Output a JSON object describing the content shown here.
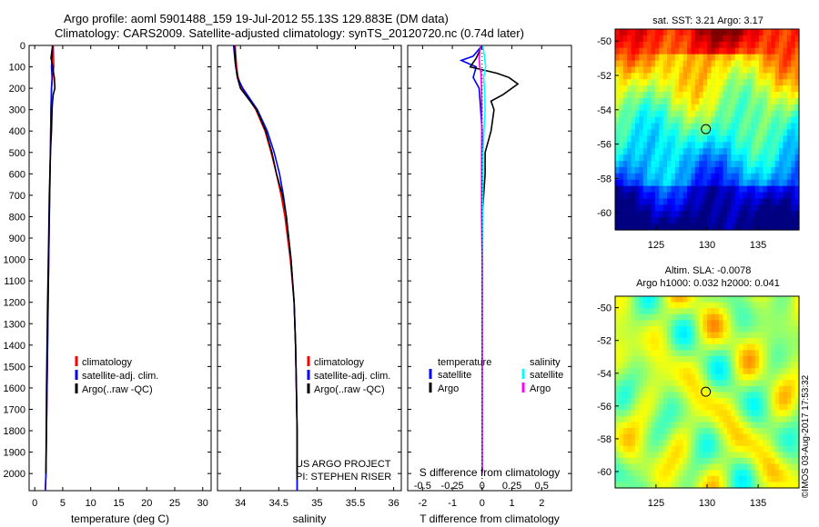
{
  "header": {
    "line1": "Argo profile: aoml 5901488_159 19-Jul-2012 55.13S 129.883E (DM data)",
    "line2": "Climatology: CARS2009. Satellite-adjusted climatology: synTS_20120720.nc (0.74d later)"
  },
  "colors": {
    "climatology": "#ff0000",
    "satellite": "#0000ff",
    "argo": "#000000",
    "sat_salinity": "#00ffff",
    "argo_salinity": "#ff00ff"
  },
  "credit": "©IMOS 03-Aug-2017 17:53:32",
  "chart_data": [
    {
      "type": "line",
      "name": "temperature-profile",
      "xlabel": "temperature (deg C)",
      "ylabel": "",
      "xlim": [
        -1,
        31.5
      ],
      "ylim": [
        2080,
        0
      ],
      "xticks": [
        0,
        5,
        10,
        15,
        20,
        25,
        30
      ],
      "yticks": [
        0,
        100,
        200,
        300,
        400,
        500,
        600,
        700,
        800,
        900,
        1000,
        1100,
        1200,
        1300,
        1400,
        1500,
        1600,
        1700,
        1800,
        1900,
        2000
      ],
      "legend": [
        "climatology",
        "satellite-adj. clim.",
        "Argo(..raw -QC)"
      ],
      "series": [
        {
          "name": "climatology",
          "color": "#ff0000",
          "depth": [
            0,
            100,
            150,
            200,
            300,
            500,
            800,
            1200,
            1600,
            2000,
            2080
          ],
          "values": [
            3.3,
            3.4,
            3.2,
            3.0,
            2.9,
            2.8,
            2.6,
            2.4,
            2.2,
            2.0,
            1.9
          ]
        },
        {
          "name": "satellite",
          "color": "#0000ff",
          "depth": [
            0,
            60,
            100,
            150,
            200,
            300,
            500,
            800,
            1200,
            1600,
            2000,
            2080
          ],
          "values": [
            3.2,
            3.1,
            3.0,
            3.1,
            3.0,
            2.9,
            2.8,
            2.6,
            2.4,
            2.2,
            2.0,
            1.9
          ]
        },
        {
          "name": "argo",
          "color": "#000000",
          "depth": [
            0,
            60,
            80,
            120,
            150,
            200,
            230,
            260,
            300,
            400,
            500,
            700,
            900,
            1200,
            1600,
            2000
          ],
          "values": [
            3.2,
            2.9,
            3.1,
            3.3,
            3.5,
            3.6,
            3.3,
            3.2,
            3.1,
            3.0,
            2.8,
            2.6,
            2.5,
            2.3,
            2.1,
            2.0
          ]
        }
      ]
    },
    {
      "type": "line",
      "name": "salinity-profile",
      "xlabel": "salinity",
      "xlim": [
        33.7,
        36.1
      ],
      "ylim": [
        2080,
        0
      ],
      "xticks": [
        34,
        34.5,
        35,
        35.5,
        36
      ],
      "legend": [
        "climatology",
        "satellite-adj. clim.",
        "Argo(..raw -QC)"
      ],
      "annotation": [
        "US ARGO PROJECT",
        "PI: STEPHEN RISER"
      ],
      "series": [
        {
          "name": "climatology",
          "color": "#ff0000",
          "depth": [
            0,
            100,
            150,
            200,
            300,
            400,
            500,
            600,
            700,
            800,
            1000,
            1200,
            1400,
            1600,
            1800,
            2000,
            2080
          ],
          "values": [
            33.93,
            33.95,
            33.97,
            34.02,
            34.2,
            34.32,
            34.4,
            34.47,
            34.53,
            34.58,
            34.65,
            34.7,
            34.72,
            34.73,
            34.74,
            34.74,
            34.74
          ]
        },
        {
          "name": "satellite",
          "color": "#0000ff",
          "depth": [
            0,
            80,
            150,
            200,
            300,
            400,
            500,
            600,
            700,
            800,
            1000,
            1200,
            1400,
            1600,
            1800,
            2000,
            2080
          ],
          "values": [
            33.91,
            33.93,
            33.96,
            34.03,
            34.22,
            34.35,
            34.44,
            34.51,
            34.56,
            34.6,
            34.66,
            34.7,
            34.72,
            34.73,
            34.74,
            34.74,
            34.74
          ]
        },
        {
          "name": "argo",
          "color": "#000000",
          "depth": [
            0,
            100,
            150,
            200,
            300,
            400,
            500,
            600,
            700,
            800,
            1000,
            1200,
            1400,
            1600,
            1800,
            2000
          ],
          "values": [
            33.92,
            33.94,
            33.96,
            34.0,
            34.21,
            34.33,
            34.41,
            34.47,
            34.55,
            34.6,
            34.66,
            34.7,
            34.72,
            34.73,
            34.74,
            34.74
          ]
        }
      ]
    },
    {
      "type": "line",
      "name": "difference-profile",
      "xlabel": "T difference from climatology",
      "xlabel_top": "S difference from climatology",
      "xlim": [
        -2.5,
        3.0
      ],
      "ylim": [
        2080,
        0
      ],
      "xticks": [
        -2,
        -1,
        0,
        1,
        2
      ],
      "s_ticks": [
        -0.5,
        -0.25,
        0,
        0.25,
        0.5
      ],
      "s_tick_labels": [
        "-0.5",
        "-0.25",
        "0",
        "0.25",
        "0.5"
      ],
      "legend_temperature": {
        "title": "temperature",
        "items": [
          "satellite",
          "Argo"
        ]
      },
      "legend_salinity": {
        "title": "salinity",
        "items": [
          "satellite",
          "Argo"
        ]
      },
      "series": [
        {
          "name": "T satellite",
          "color": "#0000ff",
          "depth": [
            0,
            50,
            70,
            100,
            150,
            200,
            300,
            400,
            500,
            700,
            1000,
            1500,
            2000
          ],
          "values": [
            0.0,
            -0.3,
            -0.7,
            -0.2,
            -0.3,
            -0.1,
            -0.05,
            0.0,
            0.0,
            0.0,
            0.0,
            0.0,
            0.0
          ]
        },
        {
          "name": "T Argo",
          "color": "#000000",
          "depth": [
            0,
            60,
            100,
            130,
            150,
            180,
            230,
            260,
            300,
            400,
            500,
            600,
            700,
            800,
            1000,
            1500,
            2000
          ],
          "values": [
            0.0,
            -0.2,
            -0.4,
            0.5,
            0.9,
            1.2,
            0.7,
            0.3,
            0.4,
            0.3,
            0.1,
            0.1,
            0.05,
            0.0,
            0.0,
            0.0,
            0.0
          ]
        },
        {
          "name": "S satellite",
          "color": "#00ffff",
          "depth": [
            0,
            50,
            100,
            150,
            200,
            300,
            400,
            500,
            700,
            1000,
            1500,
            2000
          ],
          "values": [
            0.02,
            0.08,
            0.12,
            0.05,
            0.08,
            0.1,
            0.06,
            0.03,
            0.02,
            0.01,
            0.0,
            0.0
          ]
        },
        {
          "name": "S Argo",
          "color": "#ff00ff",
          "depth": [
            0,
            60,
            100,
            130,
            200,
            300,
            500,
            800,
            900,
            1000,
            1500,
            2000
          ],
          "values": [
            -0.05,
            -0.1,
            -0.08,
            -0.04,
            -0.02,
            -0.01,
            -0.02,
            -0.02,
            -0.01,
            0.0,
            0.0,
            0.0
          ]
        }
      ]
    },
    {
      "type": "heatmap",
      "name": "sst-map",
      "title": "sat. SST: 3.21  Argo: 3.17",
      "xticks": [
        125,
        130,
        135
      ],
      "yticks": [
        -50,
        -52,
        -54,
        -56,
        -58,
        -60
      ],
      "xlim": [
        121,
        139
      ],
      "ylim": [
        -61,
        -49.3
      ],
      "marker": [
        129.883,
        -55.13
      ]
    },
    {
      "type": "heatmap",
      "name": "sla-map",
      "title_line1": "Altim. SLA: -0.0078",
      "title_line2": "Argo h1000: 0.032 h2000: 0.041",
      "xticks": [
        125,
        130,
        135
      ],
      "yticks": [
        -50,
        -52,
        -54,
        -56,
        -58,
        -60
      ],
      "xlim": [
        121,
        139
      ],
      "ylim": [
        -61,
        -49.3
      ],
      "marker": [
        129.883,
        -55.13
      ]
    }
  ]
}
